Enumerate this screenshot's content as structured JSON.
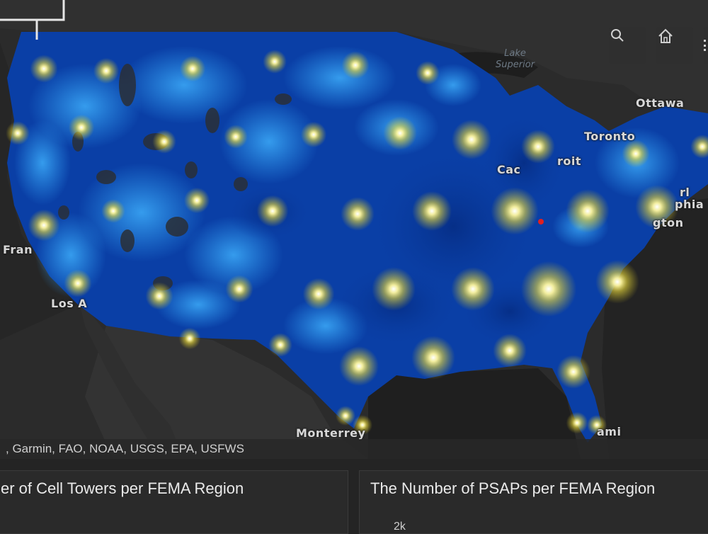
{
  "map": {
    "labels": {
      "ottawa": "Ottawa",
      "toronto": "Toronto",
      "detroit_partial": "roit",
      "chicago_partial": "Cac",
      "philadelphia_partial": "phia",
      "new_york_partial": "rl",
      "washington_partial": "gton",
      "san_francisco_partial": "Fran",
      "los_angeles_partial": "Los A",
      "monterrey": "Monterrey",
      "miami_partial": "ami",
      "lake_superior": "Lake\nSuperior"
    },
    "attribution": ", Garmin, FAO, NOAA, USGS, EPA, USFWS",
    "colors": {
      "background": "#2b2b2b",
      "coverage_dark": "#0a3fa6",
      "coverage_mid": "#1565d8",
      "coverage_light": "#2f9cf0",
      "glow": "#f5ea4a"
    },
    "tools": {
      "search_icon": "search-icon",
      "home_icon": "home-icon",
      "more_icon": "more-icon"
    }
  },
  "panels": {
    "left_title": "er of Cell Towers per FEMA Region",
    "right_title": "The Number of PSAPs per FEMA Region",
    "right_axis_tick": "2k"
  }
}
